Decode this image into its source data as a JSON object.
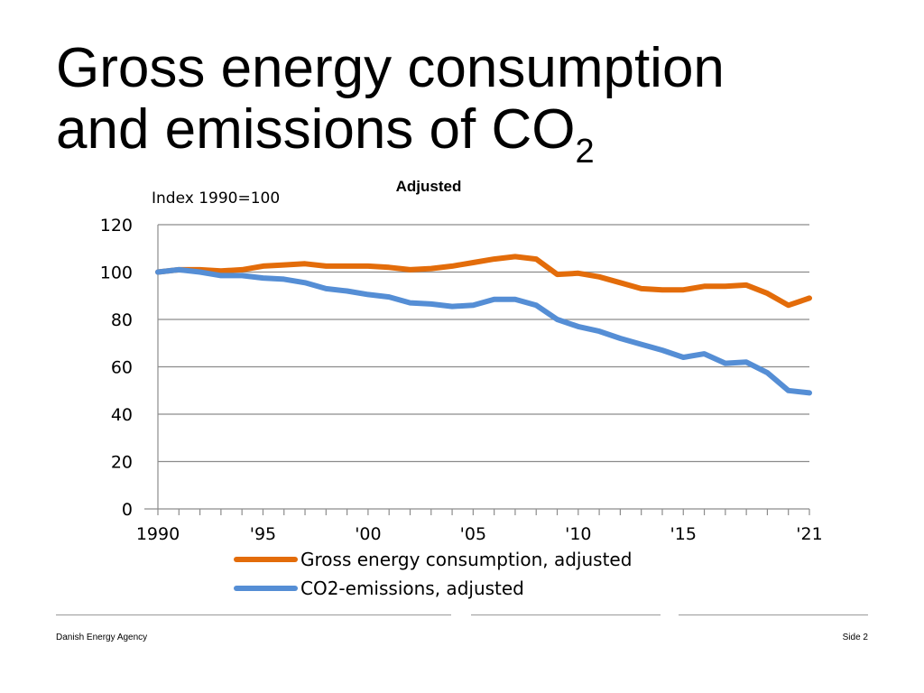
{
  "slide": {
    "title_line1": "Gross energy consumption",
    "title_line2": "and emissions of CO",
    "title_subscript": "2"
  },
  "footer": {
    "left": "Danish Energy Agency",
    "right": "Side 2"
  },
  "chart_data": {
    "type": "line",
    "title": "Adjusted",
    "ylabel": "Index 1990=100",
    "xlabel": "",
    "ylim": [
      0,
      120
    ],
    "yticks": [
      0,
      20,
      40,
      60,
      80,
      100,
      120
    ],
    "grid": true,
    "legend_position": "bottom",
    "x": [
      1990,
      1991,
      1992,
      1993,
      1994,
      1995,
      1996,
      1997,
      1998,
      1999,
      2000,
      2001,
      2002,
      2003,
      2004,
      2005,
      2006,
      2007,
      2008,
      2009,
      2010,
      2011,
      2012,
      2013,
      2014,
      2015,
      2016,
      2017,
      2018,
      2019,
      2020,
      2021
    ],
    "xticks": [
      {
        "x": 1990,
        "label": "1990"
      },
      {
        "x": 1995,
        "label": "'95"
      },
      {
        "x": 2000,
        "label": "'00"
      },
      {
        "x": 2005,
        "label": "'05"
      },
      {
        "x": 2010,
        "label": "'10"
      },
      {
        "x": 2015,
        "label": "'15"
      },
      {
        "x": 2021,
        "label": "'21"
      }
    ],
    "series": [
      {
        "name": "Gross energy consumption, adjusted",
        "color": "#E36C0A",
        "values": [
          100,
          101,
          101,
          100.5,
          101,
          102.5,
          103,
          103.5,
          102.5,
          102.5,
          102.5,
          102,
          101,
          101.5,
          102.5,
          104,
          105.5,
          106.5,
          105.5,
          99,
          99.5,
          98,
          95.5,
          93,
          92.5,
          92.5,
          94,
          94,
          94.5,
          91,
          86,
          89
        ]
      },
      {
        "name": "CO2-emissions, adjusted",
        "color": "#558ED5",
        "values": [
          100,
          101,
          100,
          98.5,
          98.5,
          97.5,
          97,
          95.5,
          93,
          92,
          90.5,
          89.5,
          87,
          86.5,
          85.5,
          86,
          88.5,
          88.5,
          86,
          80,
          77,
          75,
          72,
          69.5,
          67,
          64,
          65.5,
          61.5,
          62,
          57.5,
          50,
          49
        ]
      }
    ]
  }
}
